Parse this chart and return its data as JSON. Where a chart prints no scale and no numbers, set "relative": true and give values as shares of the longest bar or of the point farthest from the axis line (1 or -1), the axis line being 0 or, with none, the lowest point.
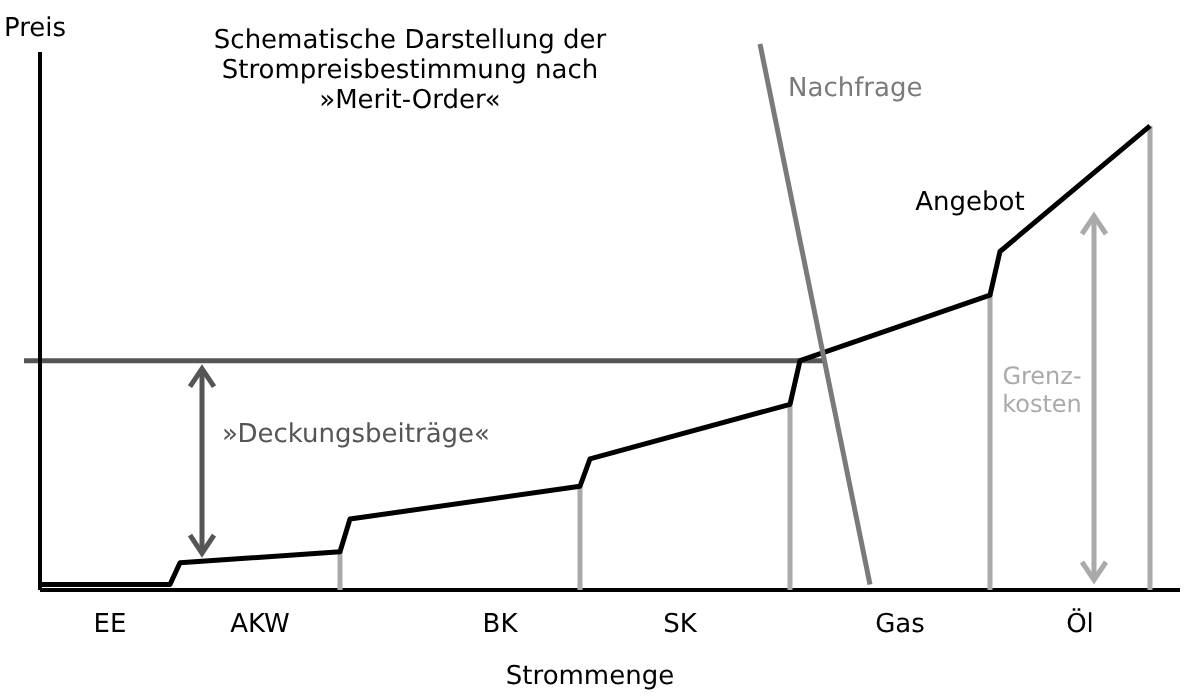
{
  "chart_data": {
    "type": "line",
    "relative": true,
    "title": "Schematische Darstellung der\nStrompreisbestimmung nach\n»Merit-Order«",
    "xlabel": "Strommenge",
    "ylabel": "Preis",
    "legend": false,
    "marker": "none",
    "line_style": "solid",
    "categories": [
      null,
      null,
      null,
      null,
      null,
      null,
      null,
      "EE",
      null,
      null,
      null,
      null,
      null,
      null,
      null,
      null,
      null,
      null,
      null,
      null,
      null,
      null,
      "AKW",
      null,
      null,
      null,
      null,
      null,
      null,
      null,
      null,
      null,
      null,
      null,
      null,
      null,
      null,
      null,
      null,
      null,
      null,
      null,
      null,
      null,
      null,
      null,
      "BK",
      null,
      null,
      null,
      null,
      null,
      null,
      null,
      null,
      null,
      null,
      null,
      null,
      null,
      null,
      null,
      null,
      null,
      "SK",
      null,
      null,
      null,
      null,
      null,
      null,
      null,
      null,
      null,
      null,
      null,
      null,
      null,
      null,
      null,
      null,
      null,
      null,
      null,
      null,
      null,
      "Gas",
      null,
      null,
      null,
      null,
      null,
      null,
      null,
      null,
      null,
      null,
      null,
      null,
      null,
      null,
      null,
      null,
      null,
      "Öl",
      null,
      null,
      null,
      null,
      null,
      null,
      null,
      null,
      null,
      null
    ],
    "series": [
      {
        "type": "bar",
        "color": "#aaaaaa",
        "values": [
          null,
          null,
          null,
          null,
          null,
          null,
          null,
          null,
          null,
          null,
          null,
          null,
          null,
          null,
          null,
          null,
          null,
          null,
          null,
          null,
          null,
          null,
          null,
          null,
          null,
          null,
          null,
          null,
          null,
          null,
          0.07,
          null,
          null,
          null,
          null,
          null,
          null,
          null,
          null,
          null,
          null,
          null,
          null,
          null,
          null,
          null,
          null,
          null,
          null,
          null,
          null,
          null,
          null,
          null,
          0.19,
          null,
          null,
          null,
          null,
          null,
          null,
          null,
          null,
          null,
          null,
          null,
          null,
          null,
          null,
          null,
          null,
          null,
          null,
          null,
          null,
          0.34,
          null,
          null,
          null,
          null,
          null,
          null,
          null,
          null,
          null,
          null,
          null,
          null,
          null,
          null,
          null,
          null,
          null,
          null,
          null,
          0.54,
          null,
          null,
          null,
          null,
          null,
          null,
          null,
          null,
          null,
          null,
          null,
          null,
          null,
          null,
          null,
          0.85,
          null,
          null,
          null
        ]
      },
      {
        "name": "Angebot",
        "color": "#000000",
        "values": [
          0.01,
          null,
          null,
          null,
          null,
          null,
          null,
          null,
          null,
          null,
          null,
          null,
          null,
          0.01,
          0.05,
          null,
          null,
          null,
          null,
          null,
          null,
          null,
          null,
          null,
          null,
          null,
          null,
          null,
          null,
          null,
          0.07,
          0.13,
          null,
          null,
          null,
          null,
          null,
          null,
          null,
          null,
          null,
          null,
          null,
          null,
          null,
          null,
          null,
          null,
          null,
          null,
          null,
          null,
          null,
          null,
          0.19,
          0.24,
          null,
          null,
          null,
          null,
          null,
          null,
          null,
          null,
          null,
          null,
          null,
          null,
          null,
          null,
          null,
          null,
          null,
          null,
          null,
          0.34,
          0.42,
          null,
          null,
          null,
          null,
          null,
          null,
          null,
          null,
          null,
          null,
          null,
          null,
          null,
          null,
          null,
          null,
          null,
          null,
          0.54,
          0.62,
          null,
          null,
          null,
          null,
          null,
          null,
          null,
          null,
          null,
          null,
          null,
          null,
          null,
          null,
          0.85,
          null,
          null,
          null
        ]
      },
      {
        "name": "Nachfrage",
        "color": "#7a7a7a",
        "values": [
          null,
          null,
          null,
          null,
          null,
          null,
          null,
          null,
          null,
          null,
          null,
          null,
          null,
          null,
          null,
          null,
          null,
          null,
          null,
          null,
          null,
          null,
          null,
          null,
          null,
          null,
          null,
          null,
          null,
          null,
          null,
          null,
          null,
          null,
          null,
          null,
          null,
          null,
          null,
          null,
          null,
          null,
          null,
          null,
          null,
          null,
          null,
          null,
          null,
          null,
          null,
          null,
          null,
          null,
          null,
          null,
          null,
          null,
          null,
          null,
          null,
          null,
          null,
          null,
          null,
          null,
          null,
          null,
          null,
          null,
          null,
          null,
          1.0,
          null,
          null,
          null,
          null,
          null,
          null,
          null,
          null,
          null,
          null,
          0.01,
          null,
          null,
          null,
          null,
          null,
          null,
          null,
          null,
          null,
          null,
          null,
          null,
          null,
          null,
          null,
          null,
          null,
          null,
          null,
          null,
          null,
          null,
          null,
          null,
          null,
          null,
          null,
          null,
          null,
          null,
          null
        ]
      }
    ],
    "ref_lines": [
      {
        "axis": "y",
        "value": 0.42,
        "label": null,
        "color": "#555555"
      }
    ],
    "annotations": [
      "»Deckungsbeiträge«",
      "Grenz-\nkosten"
    ]
  }
}
